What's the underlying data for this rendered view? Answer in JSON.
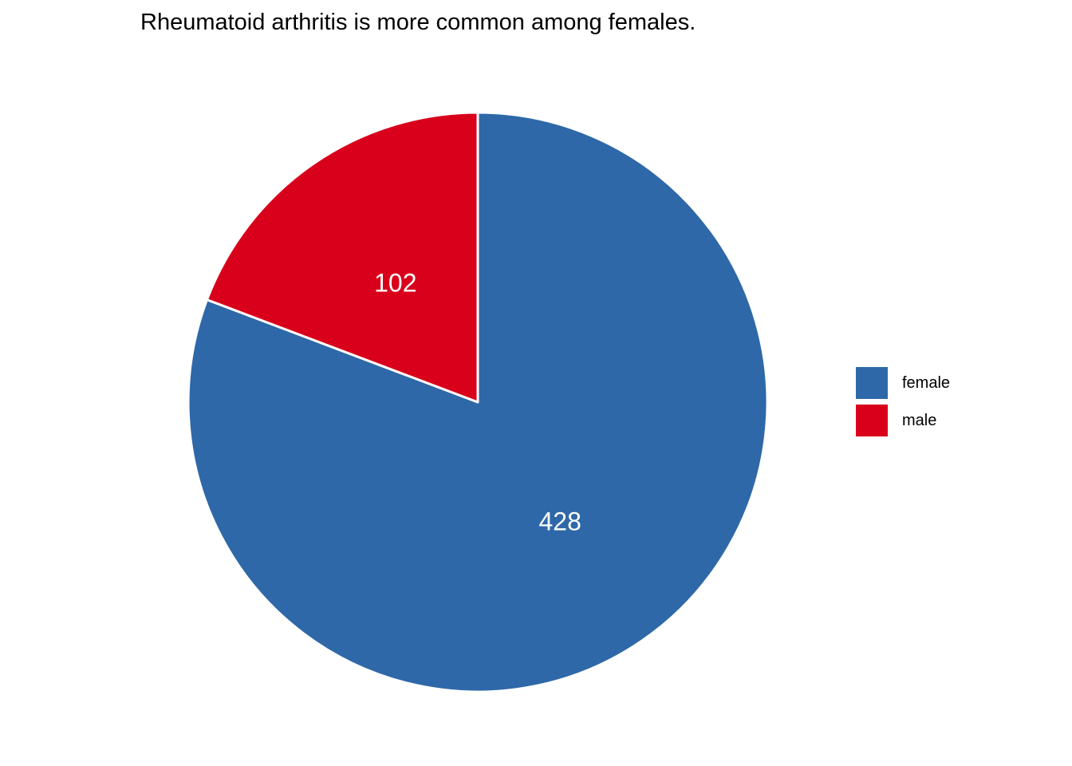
{
  "chart_data": {
    "type": "pie",
    "title": "Rheumatoid arthritis is more common among females.",
    "start_angle_deg": 90,
    "direction": "clockwise",
    "legend_position": "right",
    "series": [
      {
        "name": "female",
        "value": 428,
        "label": "428",
        "color": "#2E68A8"
      },
      {
        "name": "male",
        "value": 102,
        "label": "102",
        "color": "#D9001C"
      }
    ]
  }
}
